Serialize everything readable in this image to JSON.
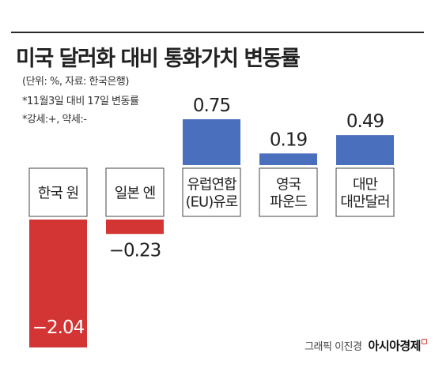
{
  "title": "미국 달러화 대비 통화가치 변동률",
  "notes": [
    "(단위: %, 자료: 한국은행)",
    "*11월3일 대비 17일 변동률",
    "*강세:+, 약세:-"
  ],
  "credit": "그래픽 이진경",
  "logo": "아시아경제",
  "colors": {
    "positive": "#4a6fbd",
    "negative": "#d33434",
    "accent": "#d23a35"
  },
  "chart_data": {
    "type": "bar",
    "categories": [
      [
        "한국 원"
      ],
      [
        "일본 엔"
      ],
      [
        "유럽연합",
        "(EU)유로"
      ],
      [
        "영국",
        "파운드"
      ],
      [
        "대만",
        "대만달러"
      ]
    ],
    "values": [
      -2.04,
      -0.23,
      0.75,
      0.19,
      0.49
    ],
    "value_labels": [
      "-2.04",
      "-0.23",
      "0.75",
      "0.19",
      "0.49"
    ],
    "title": "미국 달러화 대비 통화가치 변동률",
    "xlabel": "",
    "ylabel": "",
    "grid": false
  }
}
